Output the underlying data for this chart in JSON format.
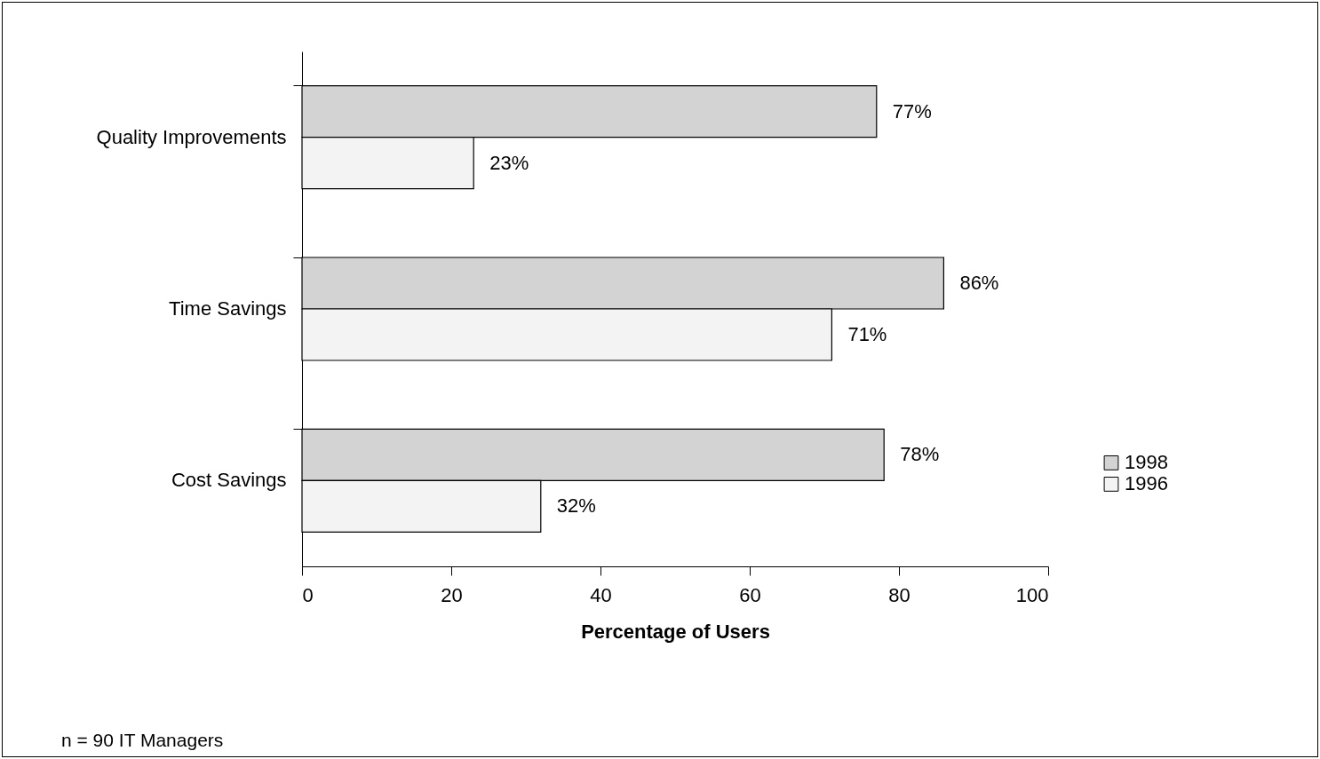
{
  "chart_data": {
    "type": "bar",
    "orientation": "horizontal",
    "xlabel": "Percentage of Users",
    "categories": [
      "Quality Improvements",
      "Time Savings",
      "Cost Savings"
    ],
    "series": [
      {
        "name": "1998",
        "color": "#d3d3d3",
        "values": [
          77,
          86,
          78
        ],
        "value_labels": [
          "77%",
          "86%",
          "78%"
        ]
      },
      {
        "name": "1996",
        "color": "#f3f3f3",
        "values": [
          23,
          71,
          32
        ],
        "value_labels": [
          "23%",
          "71%",
          "32%"
        ]
      }
    ],
    "xlim": [
      0,
      100
    ],
    "xticks": [
      0,
      20,
      40,
      60,
      80,
      100
    ],
    "legend": "right",
    "annotations": [
      "n = 90 IT Managers"
    ]
  }
}
